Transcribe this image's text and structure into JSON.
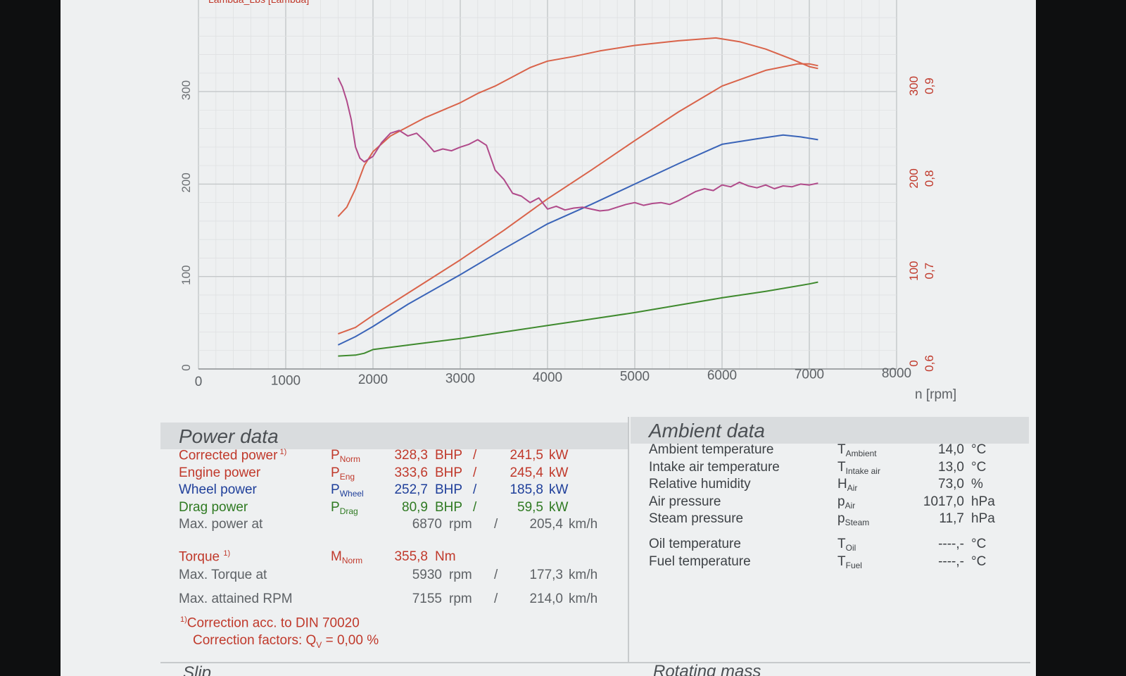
{
  "chart_data": {
    "type": "line",
    "xlabel": "n [rpm]",
    "xlim": [
      0,
      8000
    ],
    "x_ticks": [
      "0",
      "1000",
      "2000",
      "3000",
      "4000",
      "5000",
      "6000",
      "7000",
      "8000"
    ],
    "ylim": [
      0,
      400
    ],
    "y_ticks": [
      "0",
      "100",
      "200",
      "300"
    ],
    "y_ticks_right": [
      "0",
      "100",
      "200",
      "300"
    ],
    "y_ticks_lambda": [
      "0,6",
      "0,7",
      "0,8",
      "0,9"
    ],
    "lambda_lim": [
      0.6,
      0.9
    ],
    "legend_fragment": "Lambda_Lbs [Lambda]",
    "series": [
      {
        "key": "torque",
        "color": "#d9634a",
        "points": [
          [
            1600,
            165
          ],
          [
            1700,
            175
          ],
          [
            1800,
            195
          ],
          [
            1900,
            220
          ],
          [
            2000,
            235
          ],
          [
            2200,
            252
          ],
          [
            2400,
            262
          ],
          [
            2600,
            272
          ],
          [
            2800,
            280
          ],
          [
            3000,
            288
          ],
          [
            3200,
            298
          ],
          [
            3400,
            306
          ],
          [
            3600,
            316
          ],
          [
            3800,
            326
          ],
          [
            4000,
            333
          ],
          [
            4300,
            338
          ],
          [
            4600,
            344
          ],
          [
            5000,
            350
          ],
          [
            5500,
            355
          ],
          [
            5930,
            358
          ],
          [
            6200,
            354
          ],
          [
            6500,
            346
          ],
          [
            6800,
            335
          ],
          [
            7000,
            327
          ],
          [
            7100,
            325
          ]
        ]
      },
      {
        "key": "corrected_power",
        "color": "#d9634a",
        "points": [
          [
            1600,
            38
          ],
          [
            1800,
            45
          ],
          [
            2000,
            58
          ],
          [
            2500,
            88
          ],
          [
            3000,
            118
          ],
          [
            3500,
            150
          ],
          [
            4000,
            184
          ],
          [
            4500,
            215
          ],
          [
            5000,
            247
          ],
          [
            5500,
            278
          ],
          [
            6000,
            306
          ],
          [
            6500,
            323
          ],
          [
            6870,
            330
          ],
          [
            7000,
            330
          ],
          [
            7100,
            328
          ]
        ]
      },
      {
        "key": "wheel_power",
        "color": "#3a64b8",
        "points": [
          [
            1600,
            26
          ],
          [
            1800,
            35
          ],
          [
            2000,
            46
          ],
          [
            2400,
            70
          ],
          [
            3000,
            102
          ],
          [
            3500,
            130
          ],
          [
            4000,
            157
          ],
          [
            4500,
            178
          ],
          [
            5000,
            200
          ],
          [
            5500,
            222
          ],
          [
            6000,
            243
          ],
          [
            6400,
            249
          ],
          [
            6700,
            253
          ],
          [
            6900,
            251
          ],
          [
            7100,
            248
          ]
        ]
      },
      {
        "key": "drag_power",
        "color": "#3f8a2e",
        "points": [
          [
            1600,
            14
          ],
          [
            1800,
            15
          ],
          [
            1900,
            17
          ],
          [
            2000,
            21
          ],
          [
            2500,
            27
          ],
          [
            3000,
            33
          ],
          [
            3500,
            40
          ],
          [
            4000,
            47
          ],
          [
            4500,
            54
          ],
          [
            5000,
            61
          ],
          [
            5500,
            69
          ],
          [
            6000,
            77
          ],
          [
            6500,
            84
          ],
          [
            7000,
            92
          ],
          [
            7100,
            94
          ]
        ]
      },
      {
        "key": "lambda",
        "color": "#b04a8a",
        "points": [
          [
            1600,
            0.915
          ],
          [
            1650,
            0.905
          ],
          [
            1700,
            0.89
          ],
          [
            1750,
            0.87
          ],
          [
            1800,
            0.84
          ],
          [
            1850,
            0.828
          ],
          [
            1900,
            0.824
          ],
          [
            2000,
            0.83
          ],
          [
            2100,
            0.845
          ],
          [
            2200,
            0.855
          ],
          [
            2300,
            0.858
          ],
          [
            2400,
            0.852
          ],
          [
            2500,
            0.855
          ],
          [
            2600,
            0.846
          ],
          [
            2700,
            0.835
          ],
          [
            2800,
            0.838
          ],
          [
            2900,
            0.836
          ],
          [
            3000,
            0.84
          ],
          [
            3100,
            0.843
          ],
          [
            3200,
            0.848
          ],
          [
            3300,
            0.842
          ],
          [
            3400,
            0.815
          ],
          [
            3500,
            0.805
          ],
          [
            3600,
            0.79
          ],
          [
            3700,
            0.787
          ],
          [
            3800,
            0.78
          ],
          [
            3900,
            0.785
          ],
          [
            4000,
            0.773
          ],
          [
            4100,
            0.776
          ],
          [
            4200,
            0.772
          ],
          [
            4300,
            0.774
          ],
          [
            4400,
            0.775
          ],
          [
            4500,
            0.773
          ],
          [
            4600,
            0.771
          ],
          [
            4700,
            0.772
          ],
          [
            4800,
            0.775
          ],
          [
            4900,
            0.778
          ],
          [
            5000,
            0.78
          ],
          [
            5100,
            0.777
          ],
          [
            5200,
            0.779
          ],
          [
            5300,
            0.78
          ],
          [
            5400,
            0.778
          ],
          [
            5500,
            0.782
          ],
          [
            5600,
            0.787
          ],
          [
            5700,
            0.792
          ],
          [
            5800,
            0.795
          ],
          [
            5900,
            0.793
          ],
          [
            6000,
            0.799
          ],
          [
            6100,
            0.797
          ],
          [
            6200,
            0.802
          ],
          [
            6300,
            0.798
          ],
          [
            6400,
            0.796
          ],
          [
            6500,
            0.799
          ],
          [
            6600,
            0.795
          ],
          [
            6700,
            0.798
          ],
          [
            6800,
            0.797
          ],
          [
            6900,
            0.8
          ],
          [
            7000,
            0.799
          ],
          [
            7100,
            0.801
          ]
        ]
      }
    ]
  },
  "power_data": {
    "title": "Power data",
    "rows": [
      {
        "label": "Corrected power",
        "footnote": "1)",
        "sym": "P",
        "sub": "Norm",
        "val1": "328,3",
        "unit1": "BHP",
        "sep": "/",
        "val2": "241,5",
        "unit2": "kW",
        "color": "red"
      },
      {
        "label": "Engine power",
        "footnote": "",
        "sym": "P",
        "sub": "Eng",
        "val1": "333,6",
        "unit1": "BHP",
        "sep": "/",
        "val2": "245,4",
        "unit2": "kW",
        "color": "red"
      },
      {
        "label": "Wheel power",
        "footnote": "",
        "sym": "P",
        "sub": "Wheel",
        "val1": "252,7",
        "unit1": "BHP",
        "sep": "/",
        "val2": "185,8",
        "unit2": "kW",
        "color": "blue"
      },
      {
        "label": "Drag power",
        "footnote": "",
        "sym": "P",
        "sub": "Drag",
        "val1": "80,9",
        "unit1": "BHP",
        "sep": "/",
        "val2": "59,5",
        "unit2": "kW",
        "color": "green"
      },
      {
        "label": "Max. power at",
        "footnote": "",
        "sym": "",
        "sub": "",
        "val1": "6870",
        "unit1": "rpm",
        "sep": "/",
        "val2": "205,4",
        "unit2": "km/h",
        "color": "gray"
      }
    ],
    "torque": {
      "label": "Torque",
      "footnote": "1)",
      "sym": "M",
      "sub": "Norm",
      "val1": "355,8",
      "unit1": "Nm"
    },
    "max_torque": {
      "label": "Max. Torque at",
      "val1": "5930",
      "unit1": "rpm",
      "sep": "/",
      "val2": "177,3",
      "unit2": "km/h"
    },
    "max_rpm": {
      "label": "Max. attained RPM",
      "val1": "7155",
      "unit1": "rpm",
      "sep": "/",
      "val2": "214,0",
      "unit2": "km/h"
    },
    "note1_mark": "1)",
    "note1": "Correction acc. to DIN 70020",
    "note2_pre": "Correction factors: Q",
    "note2_sub": "V",
    "note2_post": " =   0,00 %"
  },
  "ambient_data": {
    "title": "Ambient data",
    "rows": [
      {
        "label": "Ambient temperature",
        "sym": "T",
        "sub": "Ambient",
        "val": "14,0",
        "unit": "°C"
      },
      {
        "label": "Intake air temperature",
        "sym": "T",
        "sub": "Intake air",
        "val": "13,0",
        "unit": "°C"
      },
      {
        "label": "Relative humidity",
        "sym": "H",
        "sub": "Air",
        "val": "73,0",
        "unit": "%"
      },
      {
        "label": "Air pressure",
        "sym": "p",
        "sub": "Air",
        "val": "1017,0",
        "unit": "hPa"
      },
      {
        "label": "Steam pressure",
        "sym": "p",
        "sub": "Steam",
        "val": "11,7",
        "unit": "hPa"
      },
      {
        "label": "Oil temperature",
        "sym": "T",
        "sub": "Oil",
        "val": "----,-",
        "unit": "°C"
      },
      {
        "label": "Fuel temperature",
        "sym": "T",
        "sub": "Fuel",
        "val": "----,-",
        "unit": "°C"
      }
    ]
  },
  "footer": {
    "left_partial": "Slip",
    "right_partial": "Rotating mass"
  }
}
